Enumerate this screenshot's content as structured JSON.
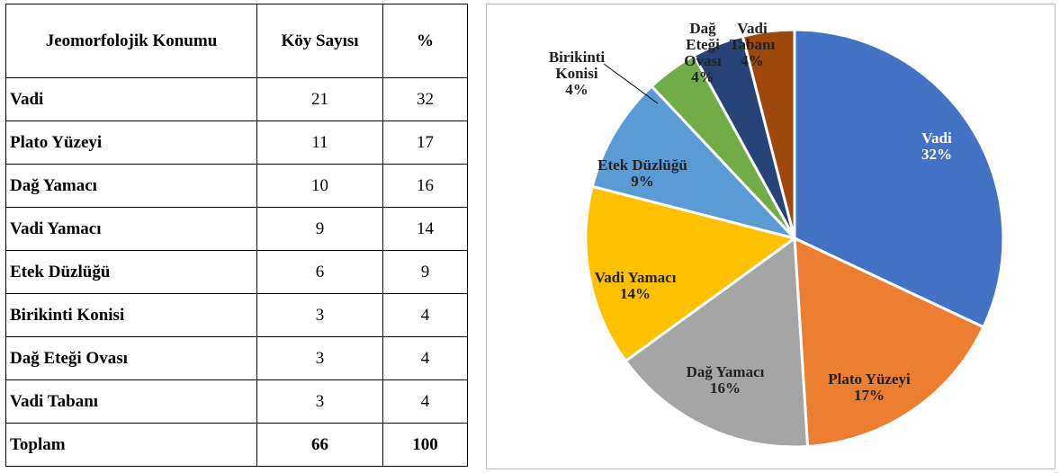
{
  "table": {
    "header": [
      "Jeomorfolojik Konumu",
      "Köy Sayısı",
      "%"
    ],
    "rows": [
      [
        "Vadi",
        "21",
        "32"
      ],
      [
        "Plato Yüzeyi",
        "11",
        "17"
      ],
      [
        "Dağ Yamacı",
        "10",
        "16"
      ],
      [
        "Vadi Yamacı",
        "9",
        "14"
      ],
      [
        "Etek Düzlüğü",
        "6",
        "9"
      ],
      [
        "Birikinti Konisi",
        "3",
        "4"
      ],
      [
        "Dağ Eteği Ovası",
        "3",
        "4"
      ],
      [
        "Vadi Tabanı",
        "3",
        "4"
      ],
      [
        "Toplam",
        "66",
        "100"
      ]
    ]
  },
  "chart_data": {
    "type": "pie",
    "categories": [
      "Vadi",
      "Plato Yüzeyi",
      "Dağ Yamacı",
      "Vadi Yamacı",
      "Etek Düzlüğü",
      "Birikinti Konisi",
      "Dağ Eteği Ovası",
      "Vadi Tabanı"
    ],
    "values": [
      32,
      17,
      16,
      14,
      9,
      4,
      4,
      4
    ],
    "value_labels": [
      "32%",
      "17%",
      "16%",
      "14%",
      "9%",
      "4%",
      "4%",
      "4%"
    ],
    "colors": [
      "#4472c4",
      "#ed7d31",
      "#a5a5a5",
      "#ffc000",
      "#5b9bd5",
      "#70ad47",
      "#264478",
      "#9e480e"
    ]
  }
}
